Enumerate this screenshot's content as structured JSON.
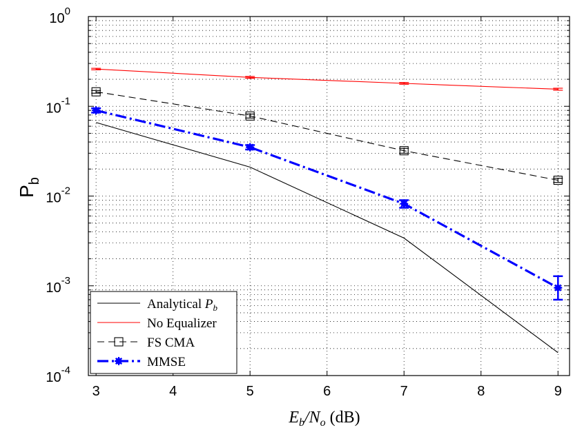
{
  "chart_data": {
    "type": "line",
    "xlabel": "E_b/N_o (dB)",
    "ylabel": "P_b",
    "x_ticks": [
      3,
      4,
      5,
      6,
      7,
      8,
      9
    ],
    "y_scale": "log",
    "y_ticks": [
      {
        "value": 0.0001,
        "base": "10",
        "exp": "-4"
      },
      {
        "value": 0.001,
        "base": "10",
        "exp": "-3"
      },
      {
        "value": 0.01,
        "base": "10",
        "exp": "-2"
      },
      {
        "value": 0.1,
        "base": "10",
        "exp": "-1"
      },
      {
        "value": 1,
        "base": "10",
        "exp": "0"
      }
    ],
    "xlim": [
      2.9,
      9.15
    ],
    "ylim": [
      0.0001,
      1
    ],
    "grid": true,
    "legend_position": "bottom-left",
    "series": [
      {
        "name": "Analytical P_b",
        "legend_text": "Analytical ",
        "legend_math": "P",
        "legend_sub": "b",
        "color": "#000000",
        "style": "solid",
        "marker": "none",
        "x": [
          3,
          5,
          7,
          9
        ],
        "y": [
          0.066,
          0.021,
          0.0034,
          0.00018
        ]
      },
      {
        "name": "No Equalizer",
        "legend_text": "No Equalizer",
        "color": "#ff0000",
        "style": "solid",
        "marker": "none",
        "x": [
          3,
          5,
          7,
          9
        ],
        "y": [
          0.26,
          0.21,
          0.18,
          0.155
        ],
        "err_low": [
          0.255,
          0.205,
          0.176,
          0.151
        ],
        "err_high": [
          0.265,
          0.215,
          0.184,
          0.159
        ]
      },
      {
        "name": "FS CMA",
        "legend_text": "FS CMA",
        "color": "#000000",
        "style": "dashed",
        "marker": "square",
        "x": [
          3,
          5,
          7,
          9
        ],
        "y": [
          0.145,
          0.078,
          0.032,
          0.015
        ],
        "err_low": [
          0.14,
          0.074,
          0.03,
          0.0142
        ],
        "err_high": [
          0.15,
          0.082,
          0.034,
          0.0158
        ]
      },
      {
        "name": "MMSE",
        "legend_text": "MMSE",
        "color": "#0000ff",
        "style": "dashdot",
        "marker": "asterisk",
        "x": [
          3,
          5,
          7,
          9
        ],
        "y": [
          0.09,
          0.035,
          0.0082,
          0.00095
        ],
        "err_low": [
          0.085,
          0.033,
          0.0074,
          0.0007
        ],
        "err_high": [
          0.095,
          0.037,
          0.009,
          0.00128
        ]
      }
    ]
  }
}
